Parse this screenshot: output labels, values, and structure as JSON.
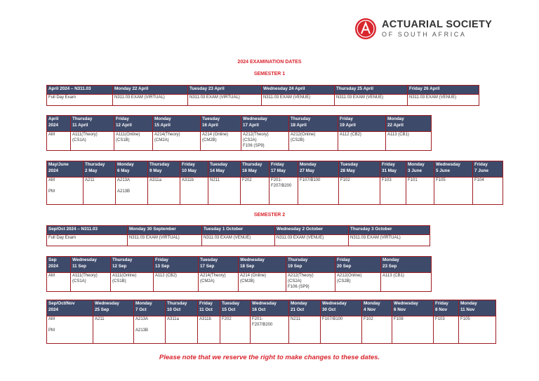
{
  "logo": {
    "line1": "ACTUARIAL SOCIETY",
    "line2": "OF SOUTH AFRICA"
  },
  "title": "2024 EXAMINATION DATES",
  "semester1": {
    "label": "SEMESTER 1",
    "full_day": {
      "headers": [
        "April 2024 – N311.03",
        "Monday 22 April",
        "Tuesday 23 April",
        "Wednesday 24 April",
        "Thursday 25 April",
        "Friday 26 April"
      ],
      "row": [
        "Full Day Exam",
        "N311.03 EXAM (VIRTUAL)",
        "N311.03 EXAM (VIRTUAL)",
        "N311.03 EXAM (VENUE)",
        "N311.03 EXAM (VENUE)",
        "N311.03 EXAM (VENUE)"
      ]
    },
    "april": {
      "headers": [
        [
          "April",
          "2024"
        ],
        [
          "Thursday",
          "11 April"
        ],
        [
          "Friday",
          "12 April"
        ],
        [
          "Monday",
          "15 April"
        ],
        [
          "Tuesday",
          "16 April"
        ],
        [
          "Wednesday",
          "17 April"
        ],
        [
          "Thursday",
          "18 April"
        ],
        [
          "Friday",
          "19 April"
        ],
        [
          "Monday",
          "22 April"
        ]
      ],
      "row": [
        [
          "AM"
        ],
        [
          "A111(Theory)",
          "(CS1A)"
        ],
        [
          "A111(Online)",
          "(CS1B)"
        ],
        [
          "A214(Theory)",
          "(CM2A)"
        ],
        [
          "A214 (Online)",
          "(CM2B)"
        ],
        [
          "A212(Theory)",
          "(CS2A)",
          "F106 (SP9)"
        ],
        [
          "A212(Online)",
          "(CS2B)"
        ],
        [
          "A112 (CB2)"
        ],
        [
          "A113 (CB1)"
        ]
      ]
    },
    "mayjune": {
      "headers": [
        [
          "May/June",
          "2024"
        ],
        [
          "Thursday",
          "2 May"
        ],
        [
          "Monday",
          "6 May"
        ],
        [
          "Thursday",
          "9 May"
        ],
        [
          "Friday",
          "10 May"
        ],
        [
          "Tuesday",
          "14 May"
        ],
        [
          "Thursday",
          "16 May"
        ],
        [
          "Friday",
          "17 May"
        ],
        [
          "Monday",
          "27 May"
        ],
        [
          "Tuesday",
          "28 May"
        ],
        [
          "Friday",
          "31 May"
        ],
        [
          "Monday",
          "3 June"
        ],
        [
          "Wednesday",
          "5 June"
        ],
        [
          "Friday",
          "7 June"
        ]
      ],
      "row": [
        [
          "AM",
          "",
          "PM"
        ],
        [
          "A211"
        ],
        [
          "A213A",
          "",
          "A213B"
        ],
        [
          "A311a"
        ],
        [
          "A311b"
        ],
        [
          "N211"
        ],
        [
          "F202"
        ],
        [
          "F201-",
          "F207/B200"
        ],
        [
          "F107/B100"
        ],
        [
          "F102"
        ],
        [
          "F103"
        ],
        [
          "F101"
        ],
        [
          "F105"
        ],
        [
          "F104"
        ]
      ]
    }
  },
  "semester2": {
    "label": "SEMESTER 2",
    "full_day": {
      "headers": [
        "Sep/Oct 2024 – N311.03",
        "Monday 30 September",
        "Tuesday 1 October",
        "Wednesday 2 October",
        "Thursday 3 October"
      ],
      "row": [
        "Full Day Exam",
        "N311.03 EXAM (VIRTUAL)",
        "N311.03 EXAM (VENUE)",
        "N311.03 EXAM (VENUE)",
        "N311.03 EXAM (VIRTUAL)"
      ]
    },
    "sep": {
      "headers": [
        [
          "Sep",
          "2024"
        ],
        [
          "Wednesday",
          "11 Sep"
        ],
        [
          "Thursday",
          "12 Sep"
        ],
        [
          "Friday",
          "13 Sep"
        ],
        [
          "Tuesday",
          "17 Sep"
        ],
        [
          "Wednesday",
          "18 Sep"
        ],
        [
          "Thursday",
          "19 Sep"
        ],
        [
          "Friday",
          "20 Sep"
        ],
        [
          "Monday",
          "23 Sep"
        ]
      ],
      "row": [
        [
          "AM"
        ],
        [
          "A111(Theory)",
          "(CS1A)"
        ],
        [
          "A111(Online)",
          "(CS1B)"
        ],
        [
          "A112 (CB2)"
        ],
        [
          "A214(Theory)",
          "(CM2A)"
        ],
        [
          "A214 (Online)",
          "(CM2B)"
        ],
        [
          "A212(Theory)",
          "(CS2A)",
          "F106 (SP9)"
        ],
        [
          "A212(Online)",
          "(CS2B)"
        ],
        [
          "A113 (CB1)"
        ]
      ]
    },
    "sepoctnov": {
      "headers": [
        [
          "Sep/Oct/Nov",
          "2024"
        ],
        [
          "Wednesday",
          "25 Sep"
        ],
        [
          "Monday",
          "7 Oct"
        ],
        [
          "Thursday",
          "10 Oct"
        ],
        [
          "Friday",
          "11 Oct"
        ],
        [
          "Tuesday",
          "15 Oct"
        ],
        [
          "Wednesday",
          "16 Oct"
        ],
        [
          "Monday",
          "21 Oct"
        ],
        [
          "Wednesday",
          "30 Oct"
        ],
        [
          "Monday",
          "4 Nov"
        ],
        [
          "Wednesday",
          "6 Nov"
        ],
        [
          "Friday",
          "8 Nov"
        ],
        [
          "Monday",
          "11 Nov"
        ]
      ],
      "row": [
        [
          "AM",
          "",
          "PM"
        ],
        [
          "A211"
        ],
        [
          "A213A",
          "",
          "A213B"
        ],
        [
          "A311a"
        ],
        [
          "A311b"
        ],
        [
          "F202"
        ],
        [
          "F201-",
          "F207/B200"
        ],
        [
          "N211"
        ],
        [
          "F107/B100"
        ],
        [
          "F102"
        ],
        [
          "F108"
        ],
        [
          "F103"
        ],
        [
          "F105"
        ]
      ]
    }
  },
  "note": "Please note that we reserve the right to make changes to these dates."
}
